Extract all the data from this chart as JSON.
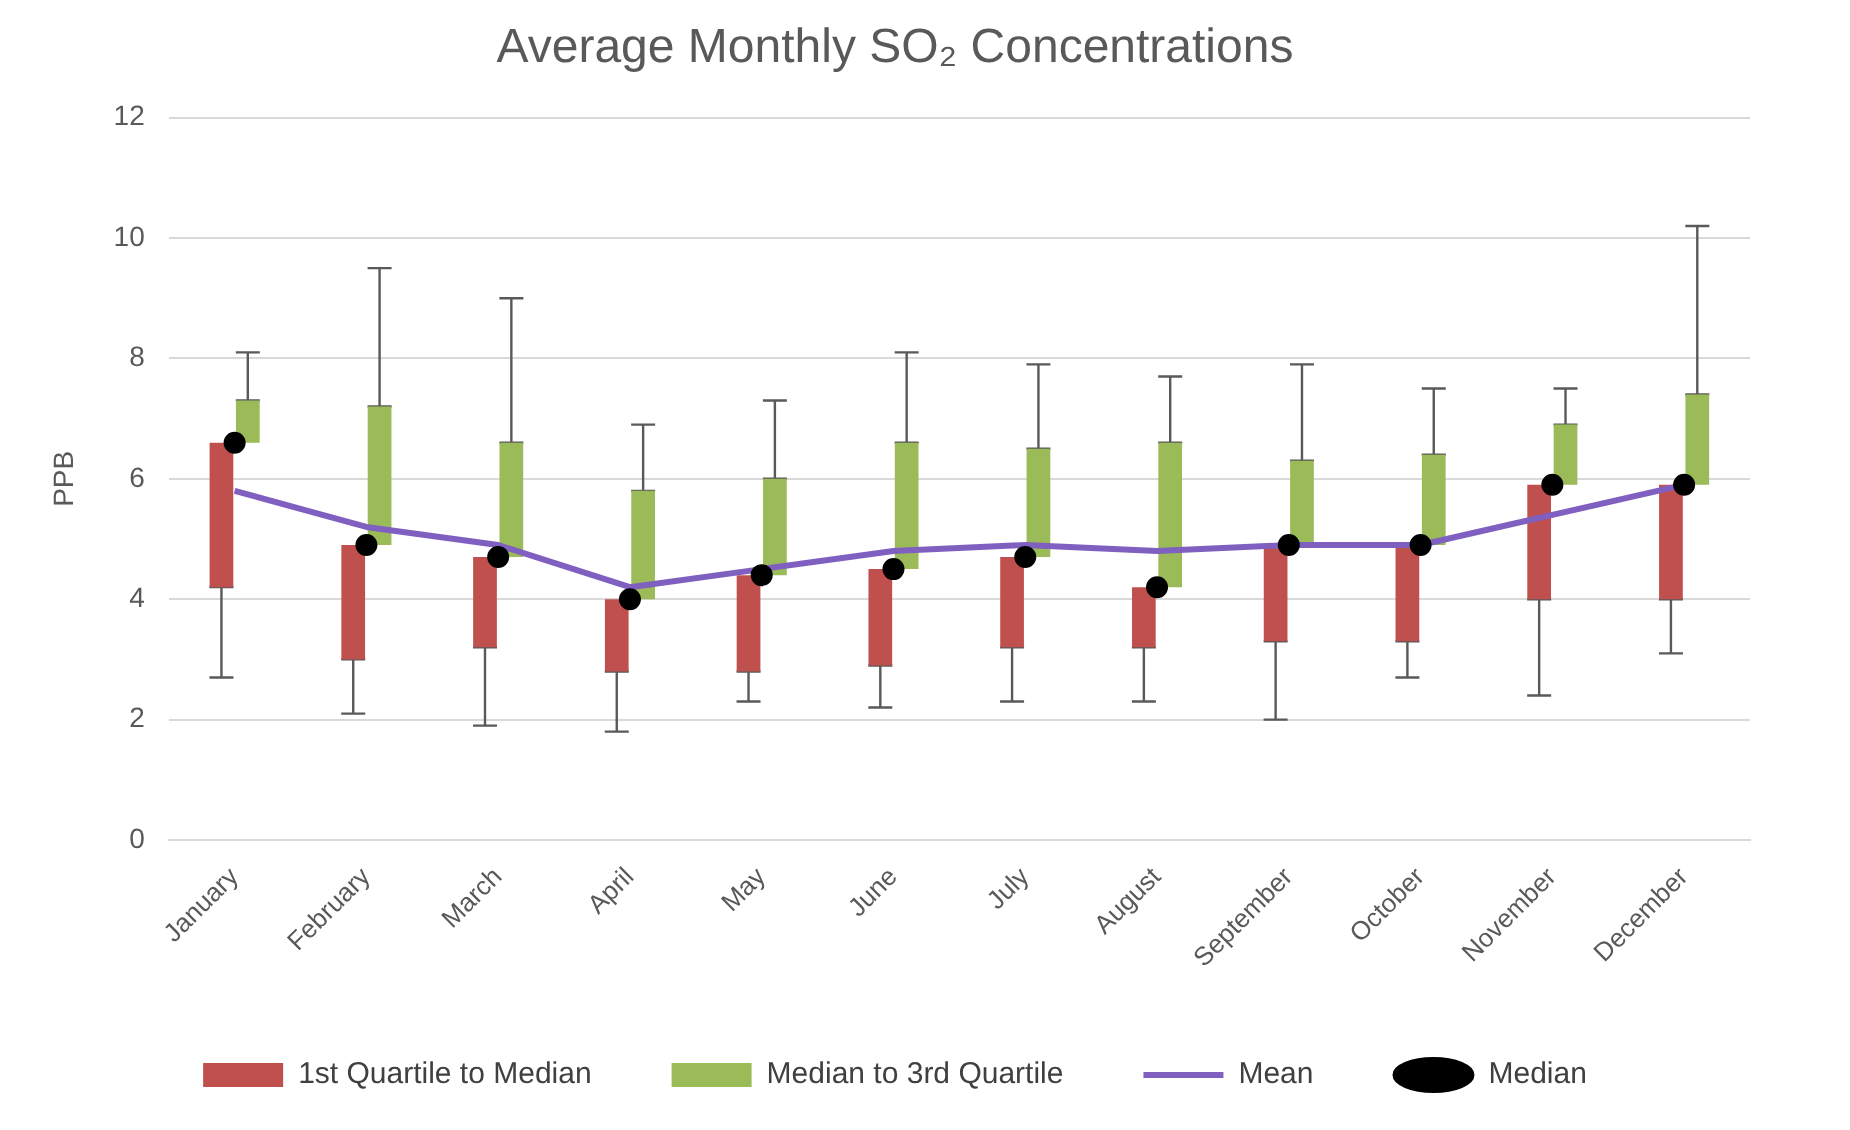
{
  "chart_data": {
    "type": "bar",
    "title": "Average Monthly SO₂ Concentrations",
    "ylabel": "PPB",
    "categories": [
      "January",
      "February",
      "March",
      "April",
      "May",
      "June",
      "July",
      "August",
      "September",
      "October",
      "November",
      "December"
    ],
    "series": [
      {
        "name": "1st Quartile to Median",
        "color": "#c0504d",
        "base": [
          4.2,
          3.0,
          3.2,
          2.8,
          2.8,
          2.9,
          3.2,
          3.2,
          3.3,
          3.3,
          4.0,
          4.0
        ],
        "values": [
          2.4,
          1.9,
          1.5,
          1.2,
          1.6,
          1.6,
          1.5,
          1.0,
          1.6,
          1.6,
          1.9,
          1.9
        ],
        "errors": [
          [
            2.7,
            4.2
          ],
          [
            2.1,
            3.0
          ],
          [
            1.9,
            3.2
          ],
          [
            1.8,
            2.8
          ],
          [
            2.3,
            2.8
          ],
          [
            2.2,
            2.9
          ],
          [
            2.3,
            3.2
          ],
          [
            2.3,
            3.2
          ],
          [
            2.0,
            3.3
          ],
          [
            2.7,
            3.3
          ],
          [
            2.4,
            4.0
          ],
          [
            3.1,
            4.0
          ]
        ]
      },
      {
        "name": "Median to 3rd Quartile",
        "color": "#9bbb59",
        "base": [
          6.6,
          4.9,
          4.7,
          4.0,
          4.4,
          4.5,
          4.7,
          4.2,
          4.9,
          4.9,
          5.9,
          5.9
        ],
        "values": [
          0.7,
          2.3,
          1.9,
          1.8,
          1.6,
          2.1,
          1.8,
          2.4,
          1.4,
          1.5,
          1.0,
          1.5
        ],
        "errors": [
          [
            7.3,
            8.1
          ],
          [
            7.2,
            9.5
          ],
          [
            6.6,
            9.0
          ],
          [
            5.8,
            6.9
          ],
          [
            6.0,
            7.3
          ],
          [
            6.6,
            8.1
          ],
          [
            6.5,
            7.9
          ],
          [
            6.6,
            7.7
          ],
          [
            6.3,
            7.9
          ],
          [
            6.4,
            7.5
          ],
          [
            6.9,
            7.5
          ],
          [
            7.4,
            10.2
          ]
        ]
      },
      {
        "name": "Mean",
        "type": "line",
        "color": "#7f5fbf",
        "marker": "none",
        "values": [
          5.8,
          5.2,
          4.9,
          4.2,
          4.5,
          4.8,
          4.9,
          4.8,
          4.9,
          4.9,
          5.4,
          5.9
        ]
      },
      {
        "name": "Median",
        "type": "scatter",
        "color": "#000000",
        "marker": "circle",
        "x": [
          "January",
          "February",
          "March",
          "April",
          "May",
          "June",
          "July",
          "August",
          "September",
          "October",
          "November",
          "December"
        ],
        "values": [
          6.6,
          4.9,
          4.7,
          4.0,
          4.4,
          4.5,
          4.7,
          4.2,
          4.9,
          4.9,
          5.9,
          5.9
        ]
      }
    ],
    "ylim": [
      0,
      12
    ],
    "yticks": [
      0,
      2,
      4,
      6,
      8,
      10,
      12
    ],
    "grid": "y",
    "legend": "bottom"
  }
}
